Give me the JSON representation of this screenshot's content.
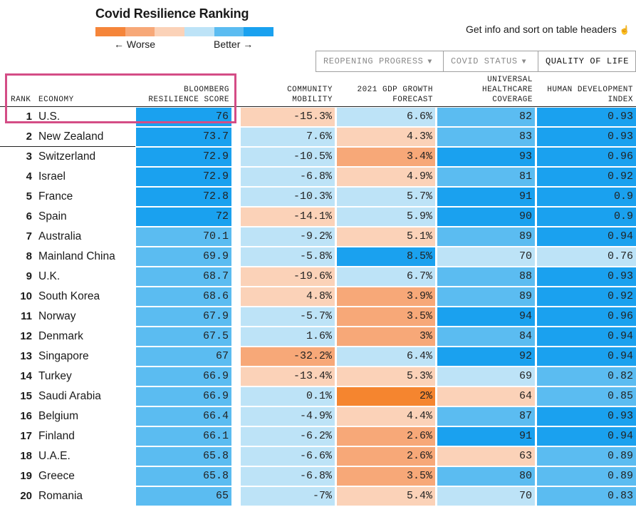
{
  "title": "Covid Resilience Ranking",
  "legend": {
    "worse_label": "← Worse",
    "better_label": "Better →",
    "colors": [
      "#f5853a",
      "#f7a878",
      "#fbd2b8",
      "#bde3f7",
      "#5bbcf1",
      "#1aa1ef"
    ]
  },
  "info_text": "Get info and sort on table headers",
  "info_icon": "pointer-hand-icon",
  "tabs": [
    {
      "label": "REOPENING PROGRESS",
      "arrow": "▼"
    },
    {
      "label": "COVID STATUS",
      "arrow": "▼"
    },
    {
      "label": "QUALITY OF LIFE",
      "arrow": ""
    }
  ],
  "headers": {
    "rank": "RANK",
    "economy": "ECONOMY",
    "score": [
      "BLOOMBERG",
      "RESILIENCE SCORE"
    ],
    "mobility": [
      "COMMUNITY",
      "MOBILITY"
    ],
    "gdp": [
      "2021 GDP GROWTH",
      "FORECAST"
    ],
    "healthcare": [
      "UNIVERSAL",
      "HEALTHCARE",
      "COVERAGE"
    ],
    "hdi": [
      "HUMAN DEVELOPMENT",
      "INDEX"
    ]
  },
  "colors": {
    "score_dark": "#1aa1ef",
    "score_mid": "#5bbcf1",
    "orange_dark": "#f5852f",
    "orange_mid": "#f7a878",
    "peach": "#fbd2b8",
    "light_blue": "#bde3f7",
    "mid_blue": "#5bbcf1",
    "dark_blue": "#1aa1ef",
    "highlight_box": "#d44d86"
  },
  "rows": [
    {
      "rank": "1",
      "economy": "U.S.",
      "score": "76",
      "mobility": "-15.3%",
      "gdp": "6.6%",
      "healthcare": "82",
      "hdi": "0.93",
      "c": [
        "score_dark",
        "peach",
        "light_blue",
        "mid_blue",
        "dark_blue"
      ]
    },
    {
      "rank": "2",
      "economy": "New Zealand",
      "score": "73.7",
      "mobility": "7.6%",
      "gdp": "4.3%",
      "healthcare": "83",
      "hdi": "0.93",
      "c": [
        "score_dark",
        "light_blue",
        "peach",
        "mid_blue",
        "dark_blue"
      ]
    },
    {
      "rank": "3",
      "economy": "Switzerland",
      "score": "72.9",
      "mobility": "-10.5%",
      "gdp": "3.4%",
      "healthcare": "93",
      "hdi": "0.96",
      "c": [
        "score_dark",
        "light_blue",
        "orange_mid",
        "dark_blue",
        "dark_blue"
      ]
    },
    {
      "rank": "4",
      "economy": "Israel",
      "score": "72.9",
      "mobility": "-6.8%",
      "gdp": "4.9%",
      "healthcare": "81",
      "hdi": "0.92",
      "c": [
        "score_dark",
        "light_blue",
        "peach",
        "mid_blue",
        "dark_blue"
      ]
    },
    {
      "rank": "5",
      "economy": "France",
      "score": "72.8",
      "mobility": "-10.3%",
      "gdp": "5.7%",
      "healthcare": "91",
      "hdi": "0.9",
      "c": [
        "score_dark",
        "light_blue",
        "light_blue",
        "dark_blue",
        "dark_blue"
      ]
    },
    {
      "rank": "6",
      "economy": "Spain",
      "score": "72",
      "mobility": "-14.1%",
      "gdp": "5.9%",
      "healthcare": "90",
      "hdi": "0.9",
      "c": [
        "score_dark",
        "peach",
        "light_blue",
        "dark_blue",
        "dark_blue"
      ]
    },
    {
      "rank": "7",
      "economy": "Australia",
      "score": "70.1",
      "mobility": "-9.2%",
      "gdp": "5.1%",
      "healthcare": "89",
      "hdi": "0.94",
      "c": [
        "score_mid",
        "light_blue",
        "peach",
        "mid_blue",
        "dark_blue"
      ]
    },
    {
      "rank": "8",
      "economy": "Mainland China",
      "score": "69.9",
      "mobility": "-5.8%",
      "gdp": "8.5%",
      "healthcare": "70",
      "hdi": "0.76",
      "c": [
        "score_mid",
        "light_blue",
        "dark_blue",
        "light_blue",
        "light_blue"
      ]
    },
    {
      "rank": "9",
      "economy": "U.K.",
      "score": "68.7",
      "mobility": "-19.6%",
      "gdp": "6.7%",
      "healthcare": "88",
      "hdi": "0.93",
      "c": [
        "score_mid",
        "peach",
        "light_blue",
        "mid_blue",
        "dark_blue"
      ]
    },
    {
      "rank": "10",
      "economy": "South Korea",
      "score": "68.6",
      "mobility": "4.8%",
      "gdp": "3.9%",
      "healthcare": "89",
      "hdi": "0.92",
      "c": [
        "score_mid",
        "peach",
        "orange_mid",
        "mid_blue",
        "dark_blue"
      ]
    },
    {
      "rank": "11",
      "economy": "Norway",
      "score": "67.9",
      "mobility": "-5.7%",
      "gdp": "3.5%",
      "healthcare": "94",
      "hdi": "0.96",
      "c": [
        "score_mid",
        "light_blue",
        "orange_mid",
        "dark_blue",
        "dark_blue"
      ]
    },
    {
      "rank": "12",
      "economy": "Denmark",
      "score": "67.5",
      "mobility": "1.6%",
      "gdp": "3%",
      "healthcare": "84",
      "hdi": "0.94",
      "c": [
        "score_mid",
        "light_blue",
        "orange_mid",
        "mid_blue",
        "dark_blue"
      ]
    },
    {
      "rank": "13",
      "economy": "Singapore",
      "score": "67",
      "mobility": "-32.2%",
      "gdp": "6.4%",
      "healthcare": "92",
      "hdi": "0.94",
      "c": [
        "score_mid",
        "orange_mid",
        "light_blue",
        "dark_blue",
        "dark_blue"
      ]
    },
    {
      "rank": "14",
      "economy": "Turkey",
      "score": "66.9",
      "mobility": "-13.4%",
      "gdp": "5.3%",
      "healthcare": "69",
      "hdi": "0.82",
      "c": [
        "score_mid",
        "peach",
        "peach",
        "light_blue",
        "mid_blue"
      ]
    },
    {
      "rank": "15",
      "economy": "Saudi Arabia",
      "score": "66.9",
      "mobility": "0.1%",
      "gdp": "2%",
      "healthcare": "64",
      "hdi": "0.85",
      "c": [
        "score_mid",
        "light_blue",
        "orange_dark",
        "peach",
        "mid_blue"
      ]
    },
    {
      "rank": "16",
      "economy": "Belgium",
      "score": "66.4",
      "mobility": "-4.9%",
      "gdp": "4.4%",
      "healthcare": "87",
      "hdi": "0.93",
      "c": [
        "score_mid",
        "light_blue",
        "peach",
        "mid_blue",
        "dark_blue"
      ]
    },
    {
      "rank": "17",
      "economy": "Finland",
      "score": "66.1",
      "mobility": "-6.2%",
      "gdp": "2.6%",
      "healthcare": "91",
      "hdi": "0.94",
      "c": [
        "score_mid",
        "light_blue",
        "orange_mid",
        "dark_blue",
        "dark_blue"
      ]
    },
    {
      "rank": "18",
      "economy": "U.A.E.",
      "score": "65.8",
      "mobility": "-6.6%",
      "gdp": "2.6%",
      "healthcare": "63",
      "hdi": "0.89",
      "c": [
        "score_mid",
        "light_blue",
        "orange_mid",
        "peach",
        "mid_blue"
      ]
    },
    {
      "rank": "19",
      "economy": "Greece",
      "score": "65.8",
      "mobility": "-6.8%",
      "gdp": "3.5%",
      "healthcare": "80",
      "hdi": "0.89",
      "c": [
        "score_mid",
        "light_blue",
        "orange_mid",
        "mid_blue",
        "mid_blue"
      ]
    },
    {
      "rank": "20",
      "economy": "Romania",
      "score": "65",
      "mobility": "-7%",
      "gdp": "5.4%",
      "healthcare": "70",
      "hdi": "0.83",
      "c": [
        "score_mid",
        "light_blue",
        "peach",
        "light_blue",
        "mid_blue"
      ]
    }
  ]
}
